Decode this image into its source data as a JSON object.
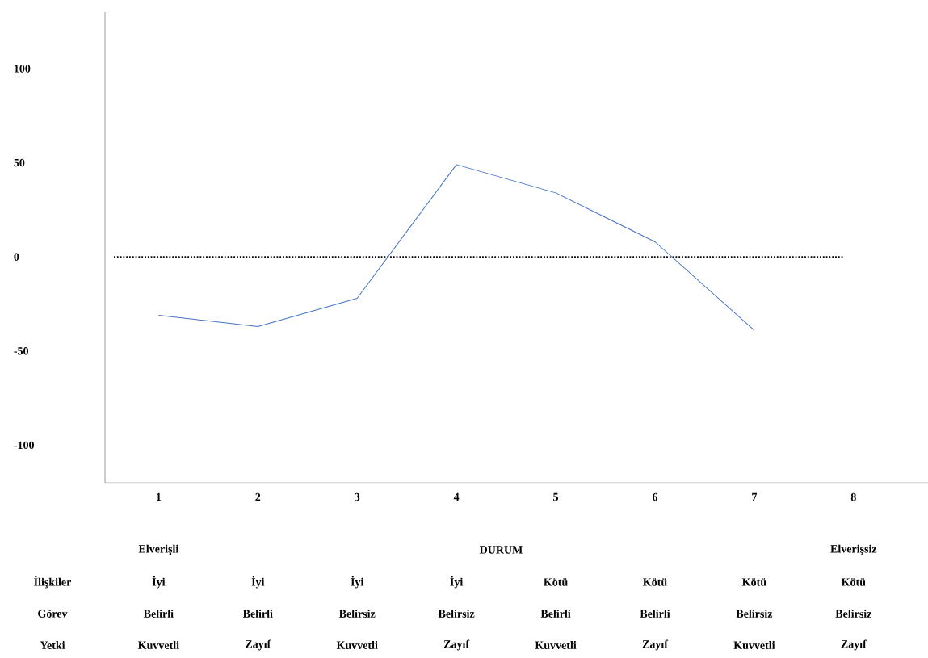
{
  "chart_data": {
    "type": "line",
    "categories": [
      "1",
      "2",
      "3",
      "4",
      "5",
      "6",
      "7",
      "8"
    ],
    "values": [
      -31,
      -37,
      -22,
      49,
      34,
      8,
      -39,
      null
    ],
    "color": "#4472c4",
    "ylim": [
      -120,
      130
    ],
    "yticks": [
      -100,
      -50,
      0,
      50,
      100
    ],
    "ref_lines": [
      {
        "axis": "y",
        "value": 0,
        "line_style": "dotted",
        "color": "#000000"
      }
    ],
    "grid": false,
    "annotations": [
      "Elverişli",
      "DURUM",
      "Elverişsiz",
      "İlişkiler",
      "İyi",
      "İyi",
      "İyi",
      "İyi",
      "Kötü",
      "Kötü",
      "Kötü",
      "Kötü",
      "Görev",
      "Belirli",
      "Belirli",
      "Belirsiz",
      "Belirsiz",
      "Belirli",
      "Belirli",
      "Belirsiz",
      "Belirsiz",
      "Yetki",
      "Kuvvetli",
      "Zayıf",
      "Kuvvetli",
      "Zayıf",
      "Kuvvetli",
      "Zayıf",
      "Kuvvetli",
      "Zayıf"
    ]
  }
}
